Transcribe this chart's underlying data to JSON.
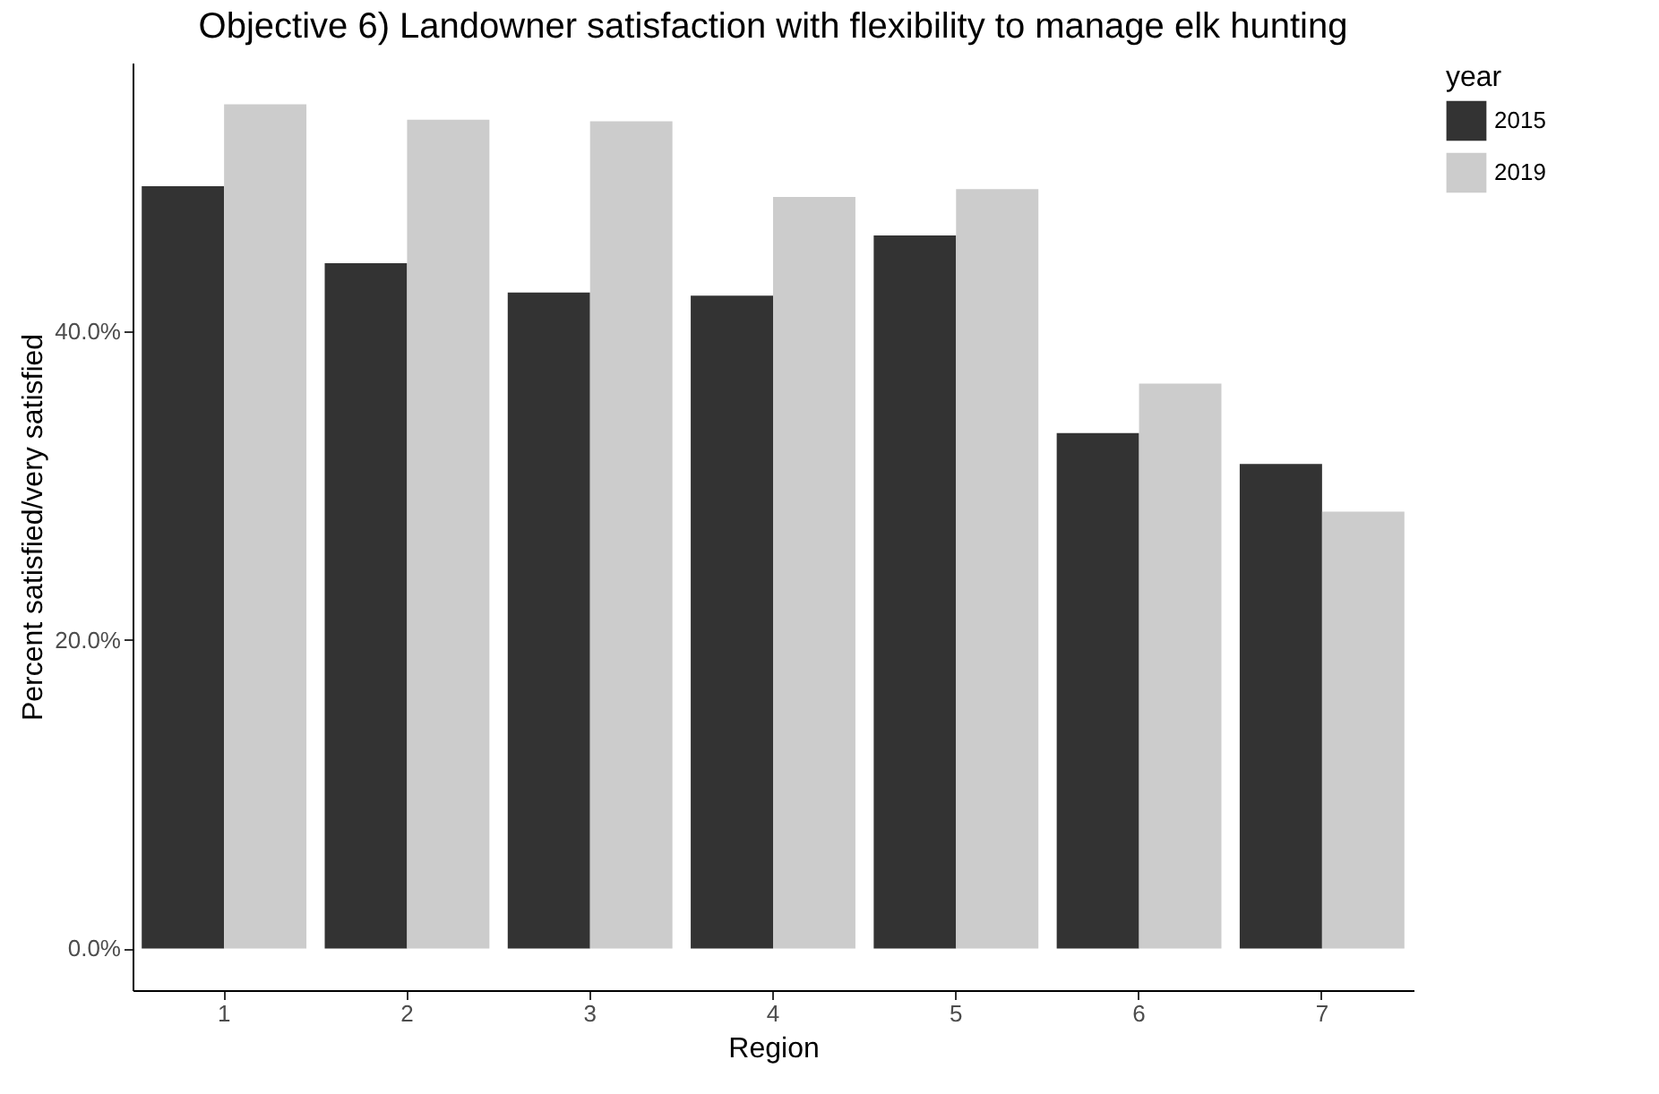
{
  "chart_data": {
    "type": "bar",
    "title": "Objective 6) Landowner satisfaction with flexibility to manage elk hunting",
    "xlabel": "Region",
    "ylabel": "Percent satisfied/very satisfied",
    "legend_title": "year",
    "categories": [
      "1",
      "2",
      "3",
      "4",
      "5",
      "6",
      "7"
    ],
    "series": [
      {
        "name": "2015",
        "color": "#333333",
        "values": [
          49.4,
          44.4,
          42.5,
          42.3,
          46.2,
          33.4,
          31.4
        ]
      },
      {
        "name": "2019",
        "color": "#cccccc",
        "values": [
          54.7,
          53.7,
          53.6,
          48.7,
          49.2,
          36.6,
          28.3
        ]
      }
    ],
    "ylim": [
      -2.7,
      57.4
    ],
    "yticks": [
      {
        "value": 0,
        "label": "0.0%"
      },
      {
        "value": 20,
        "label": "20.0%"
      },
      {
        "value": 40,
        "label": "40.0%"
      }
    ],
    "grid": false,
    "legend": "right"
  }
}
